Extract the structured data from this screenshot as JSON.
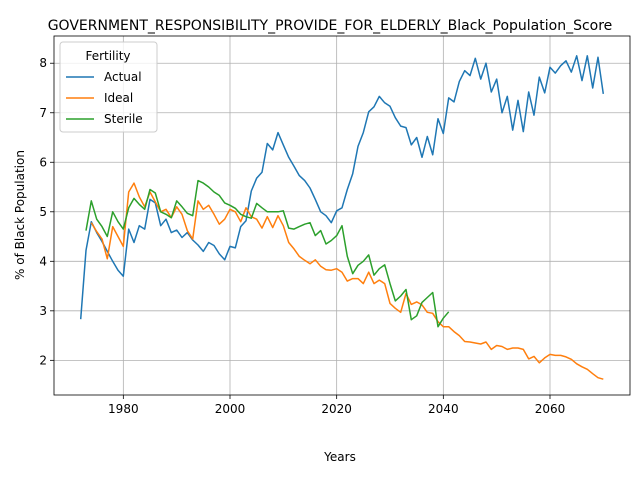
{
  "chart_data": {
    "type": "line",
    "title": "GOVERNMENT_RESPONSIBILITY_PROVIDE_FOR_ELDERLY_Black_Population_Score",
    "xlabel": "Years",
    "ylabel": "% of Black Population",
    "xlim": [
      1967,
      2075
    ],
    "ylim": [
      1.3,
      8.55
    ],
    "xticks": [
      1980,
      2000,
      2020,
      2040,
      2060
    ],
    "yticks": [
      2,
      3,
      4,
      5,
      6,
      7,
      8
    ],
    "grid": true,
    "legend": {
      "title": "Fertility",
      "position": "top-left"
    },
    "series": [
      {
        "name": "Actual",
        "color": "#1f77b4",
        "x": [
          1972,
          1973,
          1974,
          1975,
          1976,
          1977,
          1978,
          1979,
          1980,
          1981,
          1982,
          1983,
          1984,
          1985,
          1986,
          1987,
          1988,
          1989,
          1990,
          1991,
          1992,
          1993,
          1994,
          1995,
          1996,
          1997,
          1998,
          1999,
          2000,
          2001,
          2002,
          2003,
          2004,
          2005,
          2006,
          2007,
          2008,
          2009,
          2010,
          2011,
          2012,
          2013,
          2014,
          2015,
          2016,
          2017,
          2018,
          2019,
          2020,
          2021,
          2022,
          2023,
          2024,
          2025,
          2026,
          2027,
          2028,
          2029,
          2030,
          2031,
          2032,
          2033,
          2034,
          2035,
          2036,
          2037,
          2038,
          2039,
          2040,
          2041,
          2042,
          2043,
          2044,
          2045,
          2046,
          2047,
          2048,
          2049,
          2050,
          2051,
          2052,
          2053,
          2054,
          2055,
          2056,
          2057,
          2058,
          2059,
          2060,
          2061,
          2062,
          2063,
          2064,
          2065,
          2066,
          2067,
          2068,
          2069,
          2070
        ],
        "values": [
          2.83,
          4.22,
          4.8,
          4.58,
          4.4,
          4.2,
          4.0,
          3.82,
          3.7,
          4.65,
          4.38,
          4.72,
          4.65,
          5.25,
          5.18,
          4.72,
          4.85,
          4.58,
          4.63,
          4.48,
          4.58,
          4.43,
          4.33,
          4.2,
          4.38,
          4.32,
          4.15,
          4.03,
          4.3,
          4.27,
          4.7,
          4.82,
          5.42,
          5.68,
          5.8,
          6.38,
          6.25,
          6.6,
          6.35,
          6.1,
          5.92,
          5.73,
          5.63,
          5.48,
          5.25,
          5.0,
          4.92,
          4.78,
          5.02,
          5.08,
          5.45,
          5.77,
          6.32,
          6.6,
          7.02,
          7.12,
          7.33,
          7.2,
          7.13,
          6.9,
          6.73,
          6.7,
          6.35,
          6.5,
          6.1,
          6.52,
          6.15,
          6.88,
          6.58,
          7.3,
          7.22,
          7.63,
          7.85,
          7.75,
          8.1,
          7.68,
          8.0,
          7.42,
          7.68,
          7.0,
          7.33,
          6.65,
          7.25,
          6.62,
          7.42,
          6.95,
          7.72,
          7.4,
          7.92,
          7.8,
          7.95,
          8.05,
          7.82,
          8.15,
          7.65,
          8.15,
          7.5,
          8.12,
          7.38
        ]
      },
      {
        "name": "Ideal",
        "color": "#ff7f0e",
        "x": [
          1974,
          1975,
          1976,
          1977,
          1978,
          1979,
          1980,
          1981,
          1982,
          1983,
          1984,
          1985,
          1986,
          1987,
          1988,
          1989,
          1990,
          1991,
          1992,
          1993,
          1994,
          1995,
          1996,
          1997,
          1998,
          1999,
          2000,
          2001,
          2002,
          2003,
          2004,
          2005,
          2006,
          2007,
          2008,
          2009,
          2010,
          2011,
          2012,
          2013,
          2014,
          2015,
          2016,
          2017,
          2018,
          2019,
          2020,
          2021,
          2022,
          2023,
          2024,
          2025,
          2026,
          2027,
          2028,
          2029,
          2030,
          2031,
          2032,
          2033,
          2034,
          2035,
          2036,
          2037,
          2038,
          2039,
          2040,
          2041,
          2042,
          2043,
          2044,
          2045,
          2046,
          2047,
          2048,
          2049,
          2050,
          2051,
          2052,
          2053,
          2054,
          2055,
          2056,
          2057,
          2058,
          2059,
          2060,
          2061,
          2062,
          2063,
          2064,
          2065,
          2066,
          2067,
          2068,
          2069,
          2070
        ],
        "values": [
          4.78,
          4.6,
          4.45,
          4.05,
          4.7,
          4.5,
          4.3,
          5.4,
          5.58,
          5.3,
          5.1,
          5.4,
          5.2,
          5.0,
          5.05,
          4.88,
          5.1,
          4.95,
          4.62,
          4.45,
          5.22,
          5.05,
          5.13,
          4.95,
          4.75,
          4.85,
          5.05,
          5.0,
          4.8,
          5.08,
          4.9,
          4.85,
          4.67,
          4.9,
          4.68,
          4.92,
          4.72,
          4.38,
          4.25,
          4.1,
          4.02,
          3.95,
          4.03,
          3.9,
          3.83,
          3.82,
          3.85,
          3.78,
          3.6,
          3.65,
          3.65,
          3.55,
          3.78,
          3.55,
          3.62,
          3.55,
          3.15,
          3.05,
          2.97,
          3.35,
          3.13,
          3.18,
          3.12,
          2.97,
          2.95,
          2.78,
          2.68,
          2.68,
          2.58,
          2.5,
          2.38,
          2.37,
          2.35,
          2.33,
          2.37,
          2.22,
          2.3,
          2.28,
          2.22,
          2.25,
          2.25,
          2.22,
          2.03,
          2.08,
          1.95,
          2.05,
          2.12,
          2.1,
          2.1,
          2.07,
          2.02,
          1.93,
          1.87,
          1.82,
          1.73,
          1.65,
          1.62
        ]
      },
      {
        "name": "Sterile",
        "color": "#2ca02c",
        "x": [
          1973,
          1974,
          1975,
          1976,
          1977,
          1978,
          1979,
          1980,
          1981,
          1982,
          1983,
          1984,
          1985,
          1986,
          1987,
          1988,
          1989,
          1990,
          1991,
          1992,
          1993,
          1994,
          1995,
          1996,
          1997,
          1998,
          1999,
          2000,
          2001,
          2002,
          2003,
          2004,
          2005,
          2006,
          2007,
          2008,
          2009,
          2010,
          2011,
          2012,
          2013,
          2014,
          2015,
          2016,
          2017,
          2018,
          2019,
          2020,
          2021,
          2022,
          2023,
          2024,
          2025,
          2026,
          2027,
          2028,
          2029,
          2030,
          2031,
          2032,
          2033,
          2034,
          2035,
          2036,
          2037,
          2038,
          2039,
          2040,
          2041
        ],
        "values": [
          4.62,
          5.22,
          4.85,
          4.7,
          4.5,
          5.0,
          4.8,
          4.65,
          5.08,
          5.27,
          5.15,
          5.05,
          5.45,
          5.38,
          5.0,
          4.95,
          4.88,
          5.22,
          5.1,
          4.97,
          4.92,
          5.63,
          5.58,
          5.5,
          5.4,
          5.33,
          5.18,
          5.13,
          5.07,
          4.95,
          4.9,
          4.87,
          5.17,
          5.08,
          5.0,
          5.0,
          5.0,
          5.02,
          4.67,
          4.65,
          4.7,
          4.75,
          4.78,
          4.52,
          4.62,
          4.35,
          4.42,
          4.52,
          4.72,
          4.1,
          3.75,
          3.92,
          4.0,
          4.13,
          3.72,
          3.85,
          3.93,
          3.55,
          3.2,
          3.3,
          3.43,
          2.82,
          2.9,
          3.17,
          3.27,
          3.37,
          2.68,
          2.85,
          2.98
        ]
      }
    ]
  }
}
